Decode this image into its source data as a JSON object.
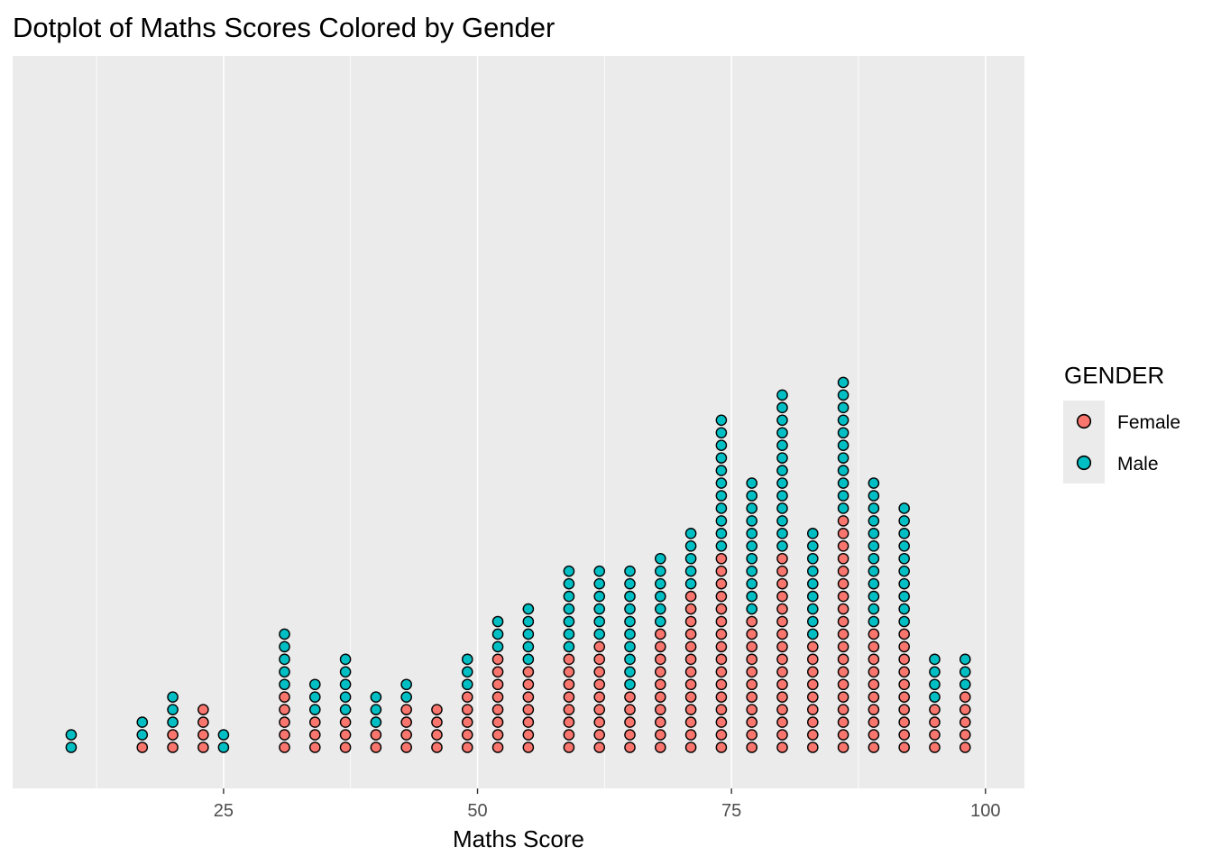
{
  "chart_data": {
    "type": "scatter",
    "subtype": "dotplot",
    "title": "Dotplot of Maths Scores Colored by Gender",
    "xlabel": "Maths Score",
    "ylabel": "",
    "xlim": [
      5,
      103
    ],
    "x_ticks": [
      25,
      50,
      75,
      100
    ],
    "x_tick_labels": [
      "25",
      "50",
      "75",
      "100"
    ],
    "grid": true,
    "legend": {
      "title": "GENDER",
      "position": "right"
    },
    "series": [
      {
        "name": "Female",
        "color": "#F8766D",
        "x": [
          17,
          20,
          23,
          31,
          34,
          37,
          40,
          43,
          46,
          49,
          52,
          55,
          59,
          62,
          65,
          68,
          71,
          74,
          77,
          80,
          83,
          86,
          89,
          92,
          95,
          98
        ],
        "counts": [
          1,
          2,
          4,
          5,
          3,
          3,
          2,
          4,
          4,
          5,
          8,
          7,
          8,
          9,
          5,
          10,
          13,
          16,
          11,
          16,
          9,
          19,
          10,
          10,
          4,
          5
        ]
      },
      {
        "name": "Male",
        "color": "#00BFC4",
        "x": [
          10,
          17,
          20,
          25,
          31,
          34,
          37,
          40,
          43,
          49,
          52,
          55,
          59,
          62,
          65,
          68,
          71,
          74,
          77,
          80,
          83,
          86,
          89,
          92,
          95,
          98
        ],
        "counts": [
          2,
          2,
          3,
          2,
          5,
          3,
          5,
          3,
          2,
          3,
          3,
          5,
          7,
          6,
          10,
          6,
          5,
          11,
          11,
          13,
          9,
          11,
          12,
          10,
          4,
          3
        ]
      }
    ]
  }
}
